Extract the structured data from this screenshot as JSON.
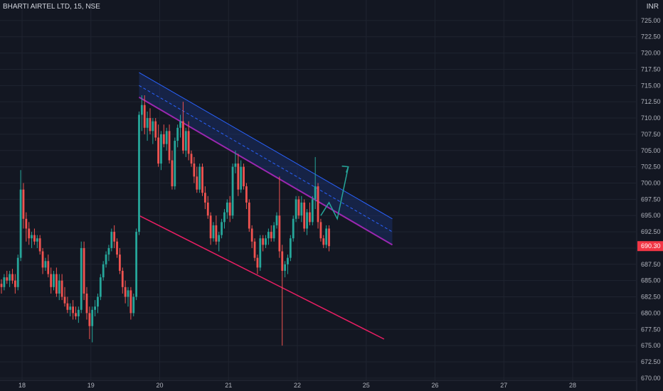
{
  "header": {
    "symbol": "BHARTI AIRTEL LTD, 15, NSE",
    "currency": "INR"
  },
  "colors": {
    "background": "#131722",
    "grid": "#1f2430",
    "up": "#26a69a",
    "down": "#ef5350",
    "channel_upper": "#2962ff",
    "channel_fill": "#1e3a8a",
    "channel_lower": "#9c27b0",
    "support": "#e91e63",
    "arrow": "#26a69a",
    "price_label": "#f23645"
  },
  "chart_data": {
    "type": "candlestick",
    "title": "BHARTI AIRTEL LTD, 15, NSE",
    "ylabel": "INR",
    "ylim": [
      669,
      727.5
    ],
    "y_ticks": [
      670,
      672.5,
      675,
      677.5,
      680,
      682.5,
      685,
      687.5,
      690,
      692.5,
      695,
      697.5,
      700,
      702.5,
      705,
      707.5,
      710,
      712.5,
      715,
      717.5,
      720,
      722.5,
      725
    ],
    "y_tick_labels": [
      "670.00",
      "672.50",
      "675.00",
      "677.50",
      "680.00",
      "682.50",
      "685.00",
      "687.50",
      "690.00",
      "692.50",
      "695.00",
      "697.50",
      "700.00",
      "702.50",
      "705.00",
      "707.50",
      "710.00",
      "712.50",
      "715.00",
      "717.50",
      "720.00",
      "722.50",
      "725.00"
    ],
    "x_ticks": [
      "18",
      "19",
      "20",
      "21",
      "22",
      "25",
      "26",
      "27",
      "28"
    ],
    "x_tick_index": [
      7.5,
      32.5,
      57.5,
      82.5,
      107.5,
      132.5,
      157.5,
      182.5,
      207.5
    ],
    "last_price_label": "690.30",
    "last_price": 690.3,
    "grid": true,
    "candles": [
      [
        684.5,
        685.2,
        683.0,
        684.0
      ],
      [
        684.0,
        686.0,
        683.5,
        685.5
      ],
      [
        685.5,
        686.5,
        684.5,
        685.0
      ],
      [
        685.0,
        686.5,
        684.0,
        686.0
      ],
      [
        686.0,
        686.8,
        684.5,
        685.0
      ],
      [
        685.0,
        686.0,
        683.0,
        684.0
      ],
      [
        684.0,
        689.0,
        683.5,
        688.5
      ],
      [
        688.5,
        702.0,
        688.0,
        699.0
      ],
      [
        699.0,
        700.0,
        693.0,
        694.5
      ],
      [
        694.5,
        695.5,
        691.0,
        693.0
      ],
      [
        693.0,
        694.0,
        690.5,
        691.5
      ],
      [
        691.5,
        692.5,
        690.0,
        692.0
      ],
      [
        692.0,
        693.0,
        690.5,
        691.0
      ],
      [
        691.0,
        692.0,
        690.0,
        691.5
      ],
      [
        691.5,
        692.0,
        689.0,
        689.5
      ],
      [
        689.5,
        690.0,
        686.0,
        687.0
      ],
      [
        687.0,
        688.5,
        686.5,
        688.0
      ],
      [
        688.0,
        689.0,
        685.5,
        686.0
      ],
      [
        686.0,
        687.0,
        683.0,
        684.0
      ],
      [
        684.0,
        686.5,
        683.5,
        686.0
      ],
      [
        686.0,
        687.0,
        682.5,
        683.0
      ],
      [
        683.0,
        686.0,
        682.0,
        685.0
      ],
      [
        685.0,
        686.0,
        682.0,
        682.5
      ],
      [
        682.5,
        684.0,
        681.0,
        681.5
      ],
      [
        681.5,
        682.5,
        680.0,
        680.5
      ],
      [
        680.5,
        681.5,
        679.5,
        681.0
      ],
      [
        681.0,
        682.0,
        679.0,
        680.0
      ],
      [
        680.0,
        681.0,
        679.0,
        679.5
      ],
      [
        679.5,
        681.0,
        678.5,
        680.5
      ],
      [
        680.5,
        691.0,
        680.0,
        690.0
      ],
      [
        690.0,
        691.0,
        682.0,
        683.0
      ],
      [
        683.0,
        684.0,
        679.0,
        680.0
      ],
      [
        680.0,
        681.0,
        676.0,
        678.0
      ],
      [
        678.0,
        681.0,
        675.5,
        680.5
      ],
      [
        680.5,
        682.0,
        679.5,
        681.0
      ],
      [
        681.0,
        683.0,
        680.0,
        682.5
      ],
      [
        682.5,
        686.0,
        682.0,
        685.5
      ],
      [
        685.5,
        688.0,
        685.0,
        687.5
      ],
      [
        687.5,
        689.5,
        687.0,
        689.0
      ],
      [
        689.0,
        690.5,
        688.0,
        690.0
      ],
      [
        690.0,
        693.0,
        689.5,
        692.5
      ],
      [
        692.5,
        693.5,
        690.0,
        691.0
      ],
      [
        691.0,
        691.5,
        688.5,
        689.0
      ],
      [
        689.0,
        690.0,
        686.0,
        686.5
      ],
      [
        686.5,
        687.0,
        683.0,
        684.0
      ],
      [
        684.0,
        685.0,
        681.5,
        682.5
      ],
      [
        682.5,
        684.0,
        681.0,
        683.5
      ],
      [
        683.5,
        684.0,
        679.0,
        680.0
      ],
      [
        680.0,
        683.0,
        679.5,
        682.5
      ],
      [
        682.5,
        693.0,
        682.0,
        692.5
      ],
      [
        692.5,
        711.0,
        692.0,
        710.5
      ],
      [
        710.5,
        713.5,
        708.0,
        712.0
      ],
      [
        712.0,
        713.5,
        707.5,
        708.5
      ],
      [
        708.5,
        711.0,
        706.5,
        710.0
      ],
      [
        710.0,
        711.5,
        707.5,
        708.0
      ],
      [
        708.0,
        710.0,
        706.0,
        709.5
      ],
      [
        709.5,
        710.0,
        706.5,
        707.0
      ],
      [
        707.0,
        709.0,
        702.5,
        703.0
      ],
      [
        703.0,
        708.0,
        702.0,
        707.5
      ],
      [
        707.5,
        709.0,
        705.5,
        706.0
      ],
      [
        706.0,
        708.5,
        705.0,
        708.0
      ],
      [
        708.0,
        709.0,
        703.0,
        703.5
      ],
      [
        703.5,
        705.0,
        699.0,
        699.5
      ],
      [
        699.5,
        707.0,
        699.0,
        706.5
      ],
      [
        706.5,
        709.0,
        705.5,
        708.5
      ],
      [
        708.5,
        710.5,
        707.0,
        709.5
      ],
      [
        709.5,
        712.5,
        704.5,
        705.0
      ],
      [
        705.0,
        708.5,
        704.0,
        708.0
      ],
      [
        708.0,
        709.5,
        703.5,
        704.5
      ],
      [
        704.5,
        705.0,
        702.5,
        703.0
      ],
      [
        703.0,
        704.0,
        700.0,
        701.0
      ],
      [
        701.0,
        702.5,
        698.5,
        699.0
      ],
      [
        699.0,
        703.0,
        698.5,
        702.5
      ],
      [
        702.5,
        703.0,
        698.0,
        698.5
      ],
      [
        698.5,
        699.5,
        696.0,
        697.0
      ],
      [
        697.0,
        698.0,
        694.5,
        695.0
      ],
      [
        695.0,
        695.5,
        690.5,
        691.5
      ],
      [
        691.5,
        694.0,
        691.0,
        693.5
      ],
      [
        693.5,
        695.0,
        690.5,
        691.0
      ],
      [
        691.0,
        692.5,
        689.5,
        692.0
      ],
      [
        692.0,
        694.5,
        691.5,
        694.0
      ],
      [
        694.0,
        696.0,
        693.0,
        695.5
      ],
      [
        695.5,
        697.5,
        694.5,
        697.0
      ],
      [
        697.0,
        698.0,
        694.0,
        695.0
      ],
      [
        695.0,
        703.0,
        694.5,
        702.5
      ],
      [
        702.5,
        705.0,
        701.5,
        703.0
      ],
      [
        703.0,
        704.5,
        698.0,
        699.0
      ],
      [
        699.0,
        703.5,
        698.5,
        702.5
      ],
      [
        702.5,
        703.0,
        699.0,
        699.5
      ],
      [
        699.5,
        700.0,
        696.0,
        697.0
      ],
      [
        697.0,
        697.5,
        692.5,
        693.0
      ],
      [
        693.0,
        693.5,
        690.0,
        691.0
      ],
      [
        691.0,
        691.5,
        688.0,
        688.5
      ],
      [
        688.5,
        689.0,
        686.0,
        687.0
      ],
      [
        687.0,
        692.0,
        686.5,
        691.5
      ],
      [
        691.5,
        692.0,
        689.5,
        690.5
      ],
      [
        690.5,
        692.0,
        690.0,
        691.5
      ],
      [
        691.5,
        693.0,
        690.5,
        692.5
      ],
      [
        692.5,
        693.5,
        691.0,
        691.5
      ],
      [
        691.5,
        694.0,
        691.0,
        693.5
      ],
      [
        693.5,
        695.5,
        693.0,
        695.0
      ],
      [
        695.0,
        701.0,
        688.5,
        689.5
      ],
      [
        689.5,
        690.5,
        675.0,
        686.5
      ],
      [
        686.5,
        688.0,
        685.5,
        687.5
      ],
      [
        687.5,
        689.0,
        686.0,
        688.5
      ],
      [
        688.5,
        692.0,
        688.0,
        691.5
      ],
      [
        691.5,
        695.0,
        691.0,
        694.5
      ],
      [
        694.5,
        698.0,
        694.0,
        697.5
      ],
      [
        697.5,
        698.0,
        694.5,
        695.0
      ],
      [
        695.0,
        698.0,
        694.0,
        697.0
      ],
      [
        697.0,
        697.5,
        692.5,
        693.0
      ],
      [
        693.0,
        696.0,
        692.0,
        695.5
      ],
      [
        695.5,
        697.0,
        693.5,
        694.0
      ],
      [
        694.0,
        698.0,
        693.5,
        697.5
      ],
      [
        697.5,
        704.0,
        696.0,
        699.5
      ],
      [
        699.5,
        700.0,
        693.0,
        694.0
      ],
      [
        694.0,
        694.5,
        691.0,
        691.5
      ],
      [
        691.5,
        692.0,
        690.0,
        690.5
      ],
      [
        690.5,
        693.5,
        690.0,
        693.0
      ],
      [
        693.0,
        693.5,
        689.5,
        690.3
      ]
    ],
    "annotations": [
      {
        "name": "descending-channel-upper",
        "x": [
          50,
          142
        ],
        "y": [
          717.0,
          694.5
        ]
      },
      {
        "name": "descending-channel-midline",
        "x": [
          50,
          142
        ],
        "y": [
          715.0,
          692.5
        ]
      },
      {
        "name": "descending-channel-lower",
        "x": [
          50,
          142
        ],
        "y": [
          713.2,
          690.5
        ]
      },
      {
        "name": "support-line",
        "x": [
          50,
          139
        ],
        "y": [
          695.0,
          676.0
        ]
      },
      {
        "name": "breakout-arrow",
        "x": [
          116,
          119,
          122,
          126
        ],
        "y": [
          695.0,
          697.0,
          694.5,
          702.5
        ]
      }
    ]
  }
}
